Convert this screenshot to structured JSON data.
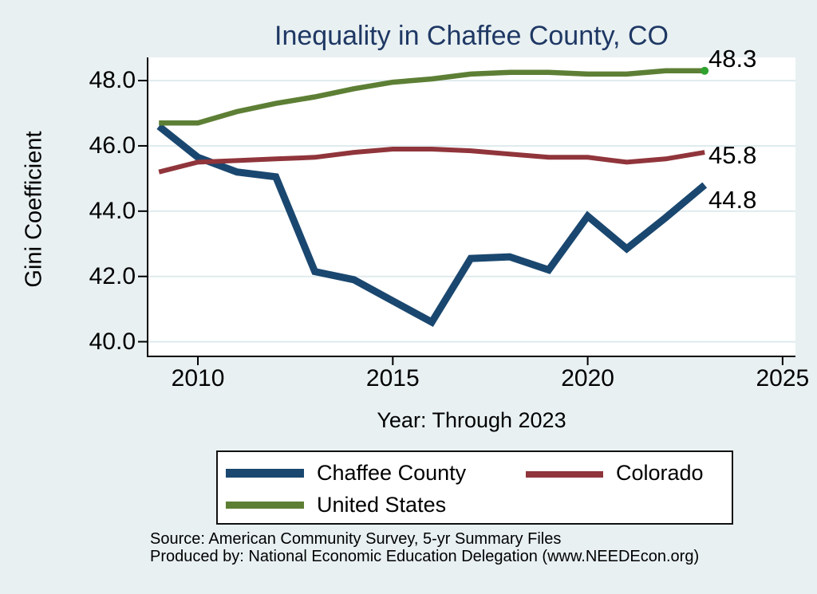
{
  "title": "Inequality in Chaffee County, CO",
  "axes": {
    "y_label": "Gini Coefficient",
    "x_label": "Year: Through 2023"
  },
  "chart_data": {
    "type": "line",
    "x": [
      2009,
      2010,
      2011,
      2012,
      2013,
      2014,
      2015,
      2016,
      2017,
      2018,
      2019,
      2020,
      2021,
      2022,
      2023
    ],
    "series": [
      {
        "name": "Chaffee County",
        "color": "#1a476f",
        "line_width": 9,
        "end_label": "44.8",
        "values": [
          46.6,
          45.65,
          45.2,
          45.05,
          42.15,
          41.9,
          41.25,
          40.6,
          42.55,
          42.6,
          42.2,
          43.85,
          42.85,
          43.8,
          44.8
        ]
      },
      {
        "name": "Colorado",
        "color": "#90353b",
        "line_width": 6,
        "end_label": "45.8",
        "values": [
          45.2,
          45.5,
          45.55,
          45.6,
          45.65,
          45.8,
          45.9,
          45.9,
          45.85,
          45.75,
          45.65,
          45.65,
          45.5,
          45.6,
          45.8
        ]
      },
      {
        "name": "United States",
        "color": "#5d7f35",
        "line_width": 6.5,
        "end_label": "48.3",
        "end_marker": true,
        "end_marker_color": "#2fa12f",
        "values": [
          46.7,
          46.7,
          47.05,
          47.3,
          47.5,
          47.75,
          47.95,
          48.05,
          48.2,
          48.25,
          48.25,
          48.2,
          48.2,
          48.3,
          48.3
        ]
      }
    ],
    "x_ticks": [
      {
        "label": "2010",
        "value": 2010
      },
      {
        "label": "2015",
        "value": 2015
      },
      {
        "label": "2020",
        "value": 2020
      },
      {
        "label": "2025",
        "value": 2025
      }
    ],
    "y_ticks": [
      {
        "label": "48.0",
        "value": 48
      },
      {
        "label": "46.0",
        "value": 46
      },
      {
        "label": "44.0",
        "value": 44
      },
      {
        "label": "42.0",
        "value": 42
      },
      {
        "label": "40.0",
        "value": 40
      }
    ],
    "xlim": [
      2008.71,
      2025.33
    ],
    "ylim": [
      39.55,
      48.71
    ],
    "grid": true,
    "legend_position": "bottom"
  },
  "legend": {
    "items": [
      {
        "label": "Chaffee County",
        "color": "#1a476f"
      },
      {
        "label": "Colorado",
        "color": "#90353b"
      },
      {
        "label": "United States",
        "color": "#5d7f35"
      }
    ]
  },
  "footer": {
    "line1": "Source: American Community Survey, 5-yr Summary Files",
    "line2": "Produced by: National Economic Education Delegation (www.NEEDEcon.org)"
  },
  "colors": {
    "background": "#e8f0f2",
    "plot_background": "#ffffff",
    "gridline": "#dfebee",
    "axis": "#000000",
    "title": "#1f3864"
  }
}
